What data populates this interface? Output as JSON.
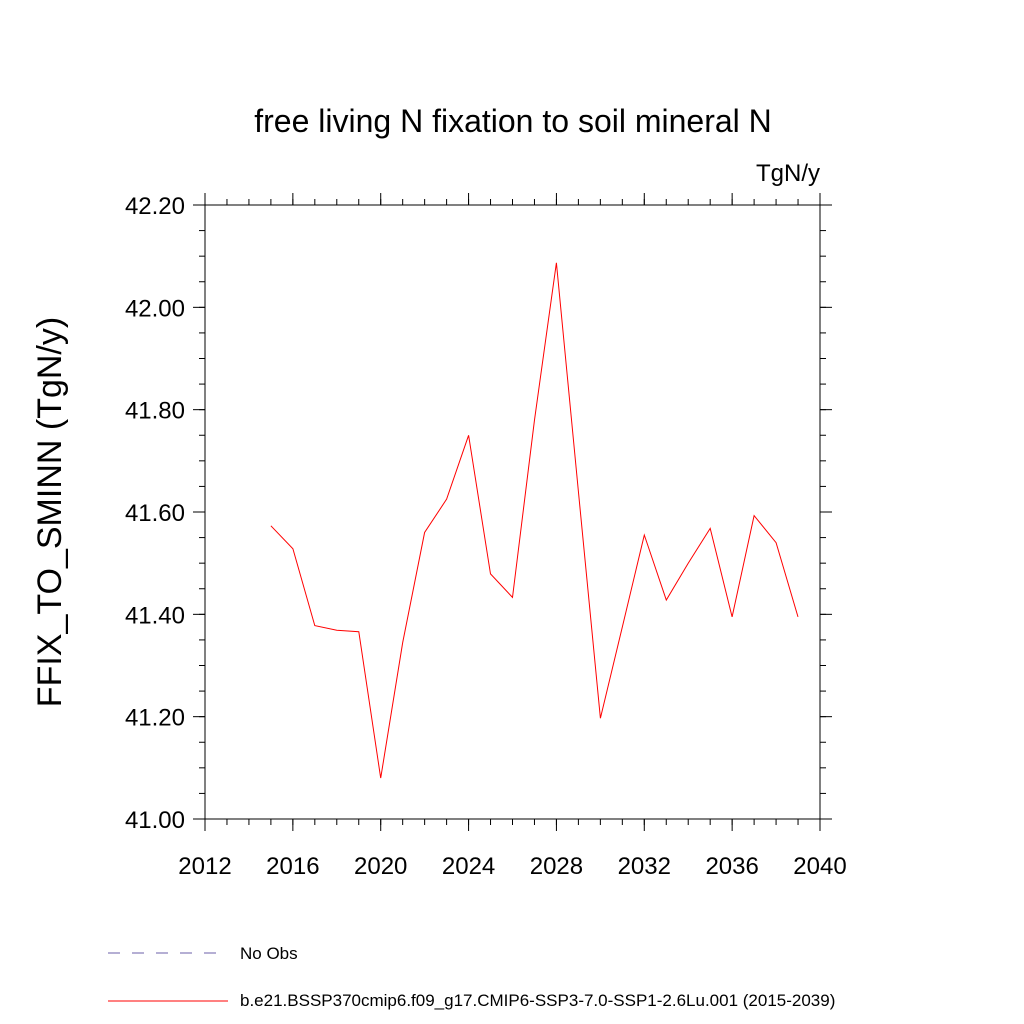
{
  "chart_data": {
    "type": "line",
    "title": "free living N fixation to soil mineral N",
    "units": "TgN/y",
    "ylabel": "FFIX_TO_SMINN  (TgN/y)",
    "xlabel": "",
    "xlim": [
      2012,
      2040
    ],
    "ylim": [
      41.0,
      42.2
    ],
    "x_ticks": [
      "2012",
      "2016",
      "2020",
      "2024",
      "2028",
      "2032",
      "2036",
      "2040"
    ],
    "y_ticks": [
      "41.00",
      "41.20",
      "41.40",
      "41.60",
      "41.80",
      "42.00",
      "42.20"
    ],
    "grid": false,
    "legend_position": "bottom",
    "series": [
      {
        "name": "b.e21.BSSP370cmip6.f09_g17.CMIP6-SSP3-7.0-SSP1-2.6Lu.001 (2015-2039)",
        "color": "#ff0000",
        "style": "solid",
        "x": [
          2015,
          2016,
          2017,
          2018,
          2019,
          2020,
          2021,
          2022,
          2023,
          2024,
          2025,
          2026,
          2027,
          2028,
          2029,
          2030,
          2031,
          2032,
          2033,
          2034,
          2035,
          2036,
          2037,
          2038,
          2039
        ],
        "y": [
          41.573,
          41.528,
          41.378,
          41.369,
          41.366,
          41.08,
          41.345,
          41.56,
          41.625,
          41.75,
          41.479,
          41.433,
          41.78,
          42.087,
          41.64,
          41.197,
          41.375,
          41.555,
          41.428,
          41.5,
          41.568,
          41.395,
          41.593,
          41.54,
          41.395
        ]
      },
      {
        "name": "No Obs",
        "color": "#6b5fa8",
        "style": "dashed",
        "x": [],
        "y": []
      }
    ]
  }
}
